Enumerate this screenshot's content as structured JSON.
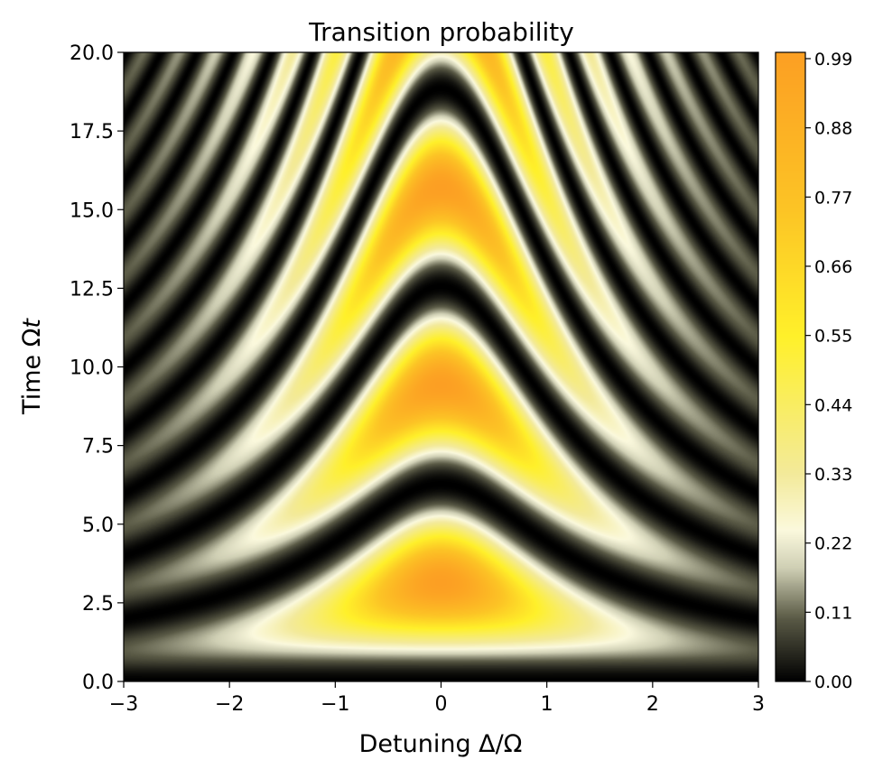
{
  "chart_data": {
    "type": "heatmap",
    "title": "Transition probability",
    "xlabel": "Detuning Δ/Ω",
    "ylabel_main": "Time Ω",
    "ylabel_italic": "t",
    "xlim": [
      -3,
      3
    ],
    "ylim": [
      0,
      20
    ],
    "x_ticks": [
      -3,
      -2,
      -1,
      0,
      1,
      2,
      3
    ],
    "x_tick_labels": [
      "−3",
      "−2",
      "−1",
      "0",
      "1",
      "2",
      "3"
    ],
    "y_ticks": [
      0,
      2.5,
      5,
      7.5,
      10,
      12.5,
      15,
      17.5,
      20
    ],
    "y_tick_labels": [
      "0.0",
      "2.5",
      "5.0",
      "7.5",
      "10.0",
      "12.5",
      "15.0",
      "17.5",
      "20.0"
    ],
    "function": "P = sin^2(sqrt(1+Δ^2) * Ωt / 2) / (1+Δ^2)",
    "colorbar": {
      "min": 0,
      "max": 1,
      "ticks": [
        0,
        0.11,
        0.22,
        0.33,
        0.44,
        0.55,
        0.66,
        0.77,
        0.88,
        0.99
      ],
      "tick_labels": [
        "0.00",
        "0.11",
        "0.22",
        "0.33",
        "0.44",
        "0.55",
        "0.66",
        "0.77",
        "0.88",
        "0.99"
      ],
      "colormap_stops": [
        [
          0.0,
          "#000000"
        ],
        [
          0.1,
          "#5a5a46"
        ],
        [
          0.18,
          "#cfcfb4"
        ],
        [
          0.24,
          "#fbf9dd"
        ],
        [
          0.33,
          "#f3ea9a"
        ],
        [
          0.55,
          "#fff02a"
        ],
        [
          0.75,
          "#fcc425"
        ],
        [
          1.0,
          "#fc9f23"
        ]
      ]
    }
  }
}
